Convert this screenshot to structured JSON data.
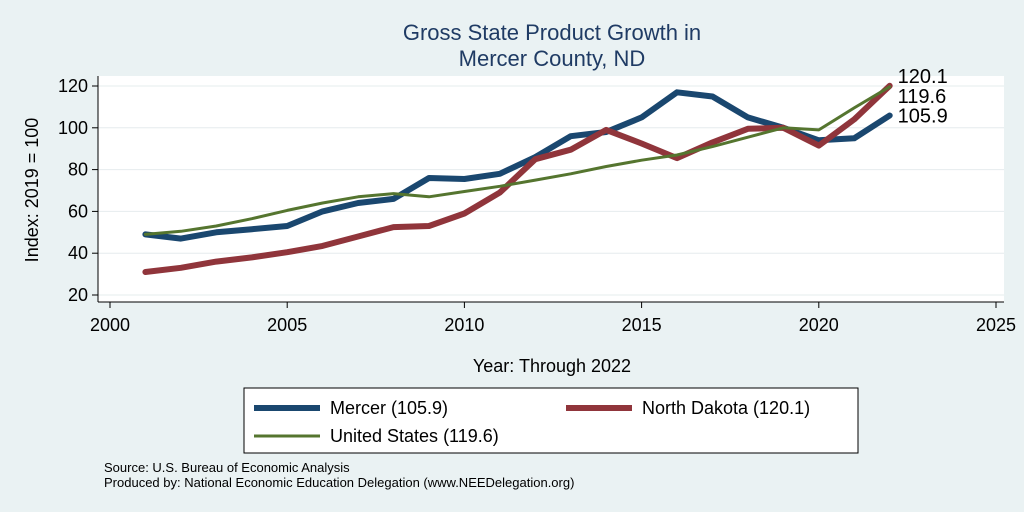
{
  "chart_data": {
    "type": "line",
    "title": [
      "Gross State Product Growth in",
      "Mercer County, ND"
    ],
    "xlabel": "Year: Through 2022",
    "ylabel": "Index: 2019 = 100",
    "xlim": [
      2000,
      2025
    ],
    "ylim": [
      20,
      120
    ],
    "xticks": [
      "2000",
      "2005",
      "2010",
      "2015",
      "2020",
      "2025"
    ],
    "yticks": [
      "20",
      "40",
      "60",
      "80",
      "100",
      "120"
    ],
    "grid": true,
    "legend_position": "bottom",
    "x": [
      2001,
      2002,
      2003,
      2004,
      2005,
      2006,
      2007,
      2008,
      2009,
      2010,
      2011,
      2012,
      2013,
      2014,
      2015,
      2016,
      2017,
      2018,
      2019,
      2020,
      2021,
      2022
    ],
    "series": [
      {
        "name": "Mercer",
        "legend_label": "Mercer  (105.9)",
        "end_label": "105.9",
        "color": "#1a476f",
        "values": [
          49,
          47,
          50,
          51.5,
          53,
          60,
          64,
          66,
          76,
          75.5,
          78,
          86,
          96,
          98,
          105,
          117,
          115,
          105,
          100,
          94,
          95,
          105.9
        ]
      },
      {
        "name": "North Dakota",
        "legend_label": "North Dakota (120.1)",
        "end_label": "120.1",
        "color": "#90353b",
        "values": [
          31,
          33,
          36,
          38,
          40.5,
          43.5,
          48,
          52.5,
          53,
          59,
          69,
          85,
          89.5,
          99,
          92.5,
          85.5,
          93,
          99.5,
          100,
          91.5,
          104,
          120.1
        ]
      },
      {
        "name": "United States",
        "legend_label": "United States (119.6)",
        "end_label": "119.6",
        "color": "#55752f",
        "values": [
          49,
          50.5,
          53,
          56.5,
          60.5,
          64,
          67,
          68.5,
          67,
          69.5,
          72,
          75,
          78,
          81.5,
          84.5,
          87,
          91,
          95.5,
          100,
          99,
          109.5,
          119.6
        ]
      }
    ]
  },
  "notes": {
    "source": "Source: U.S. Bureau of Economic Analysis",
    "produced": "Produced by: National Economic Education Delegation (www.NEEDelegation.org)"
  },
  "colors": {
    "background": "#eaf2f3",
    "plot_area": "#ffffff",
    "title": "#1f3b64"
  }
}
